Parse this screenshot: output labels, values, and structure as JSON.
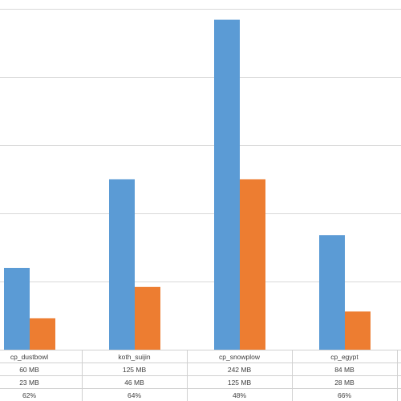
{
  "chart_data": {
    "type": "bar",
    "title": "",
    "xlabel": "",
    "ylabel": "",
    "ylim": [
      0,
      250
    ],
    "grid": true,
    "colors": [
      "#5b9bd5",
      "#ed7d31"
    ],
    "categories": [
      "cp_dustbowl",
      "koth_suijin",
      "cp_snowplow",
      "cp_egypt"
    ],
    "series": [
      {
        "values": [
          60,
          125,
          242,
          84
        ]
      },
      {
        "values": [
          23,
          46,
          125,
          28
        ]
      }
    ],
    "table": {
      "rows": [
        [
          "60 MB",
          "125 MB",
          "242 MB",
          "84 MB"
        ],
        [
          "23 MB",
          "46 MB",
          "125 MB",
          "28 MB"
        ],
        [
          "62%",
          "64%",
          "48%",
          "66%"
        ]
      ]
    }
  }
}
